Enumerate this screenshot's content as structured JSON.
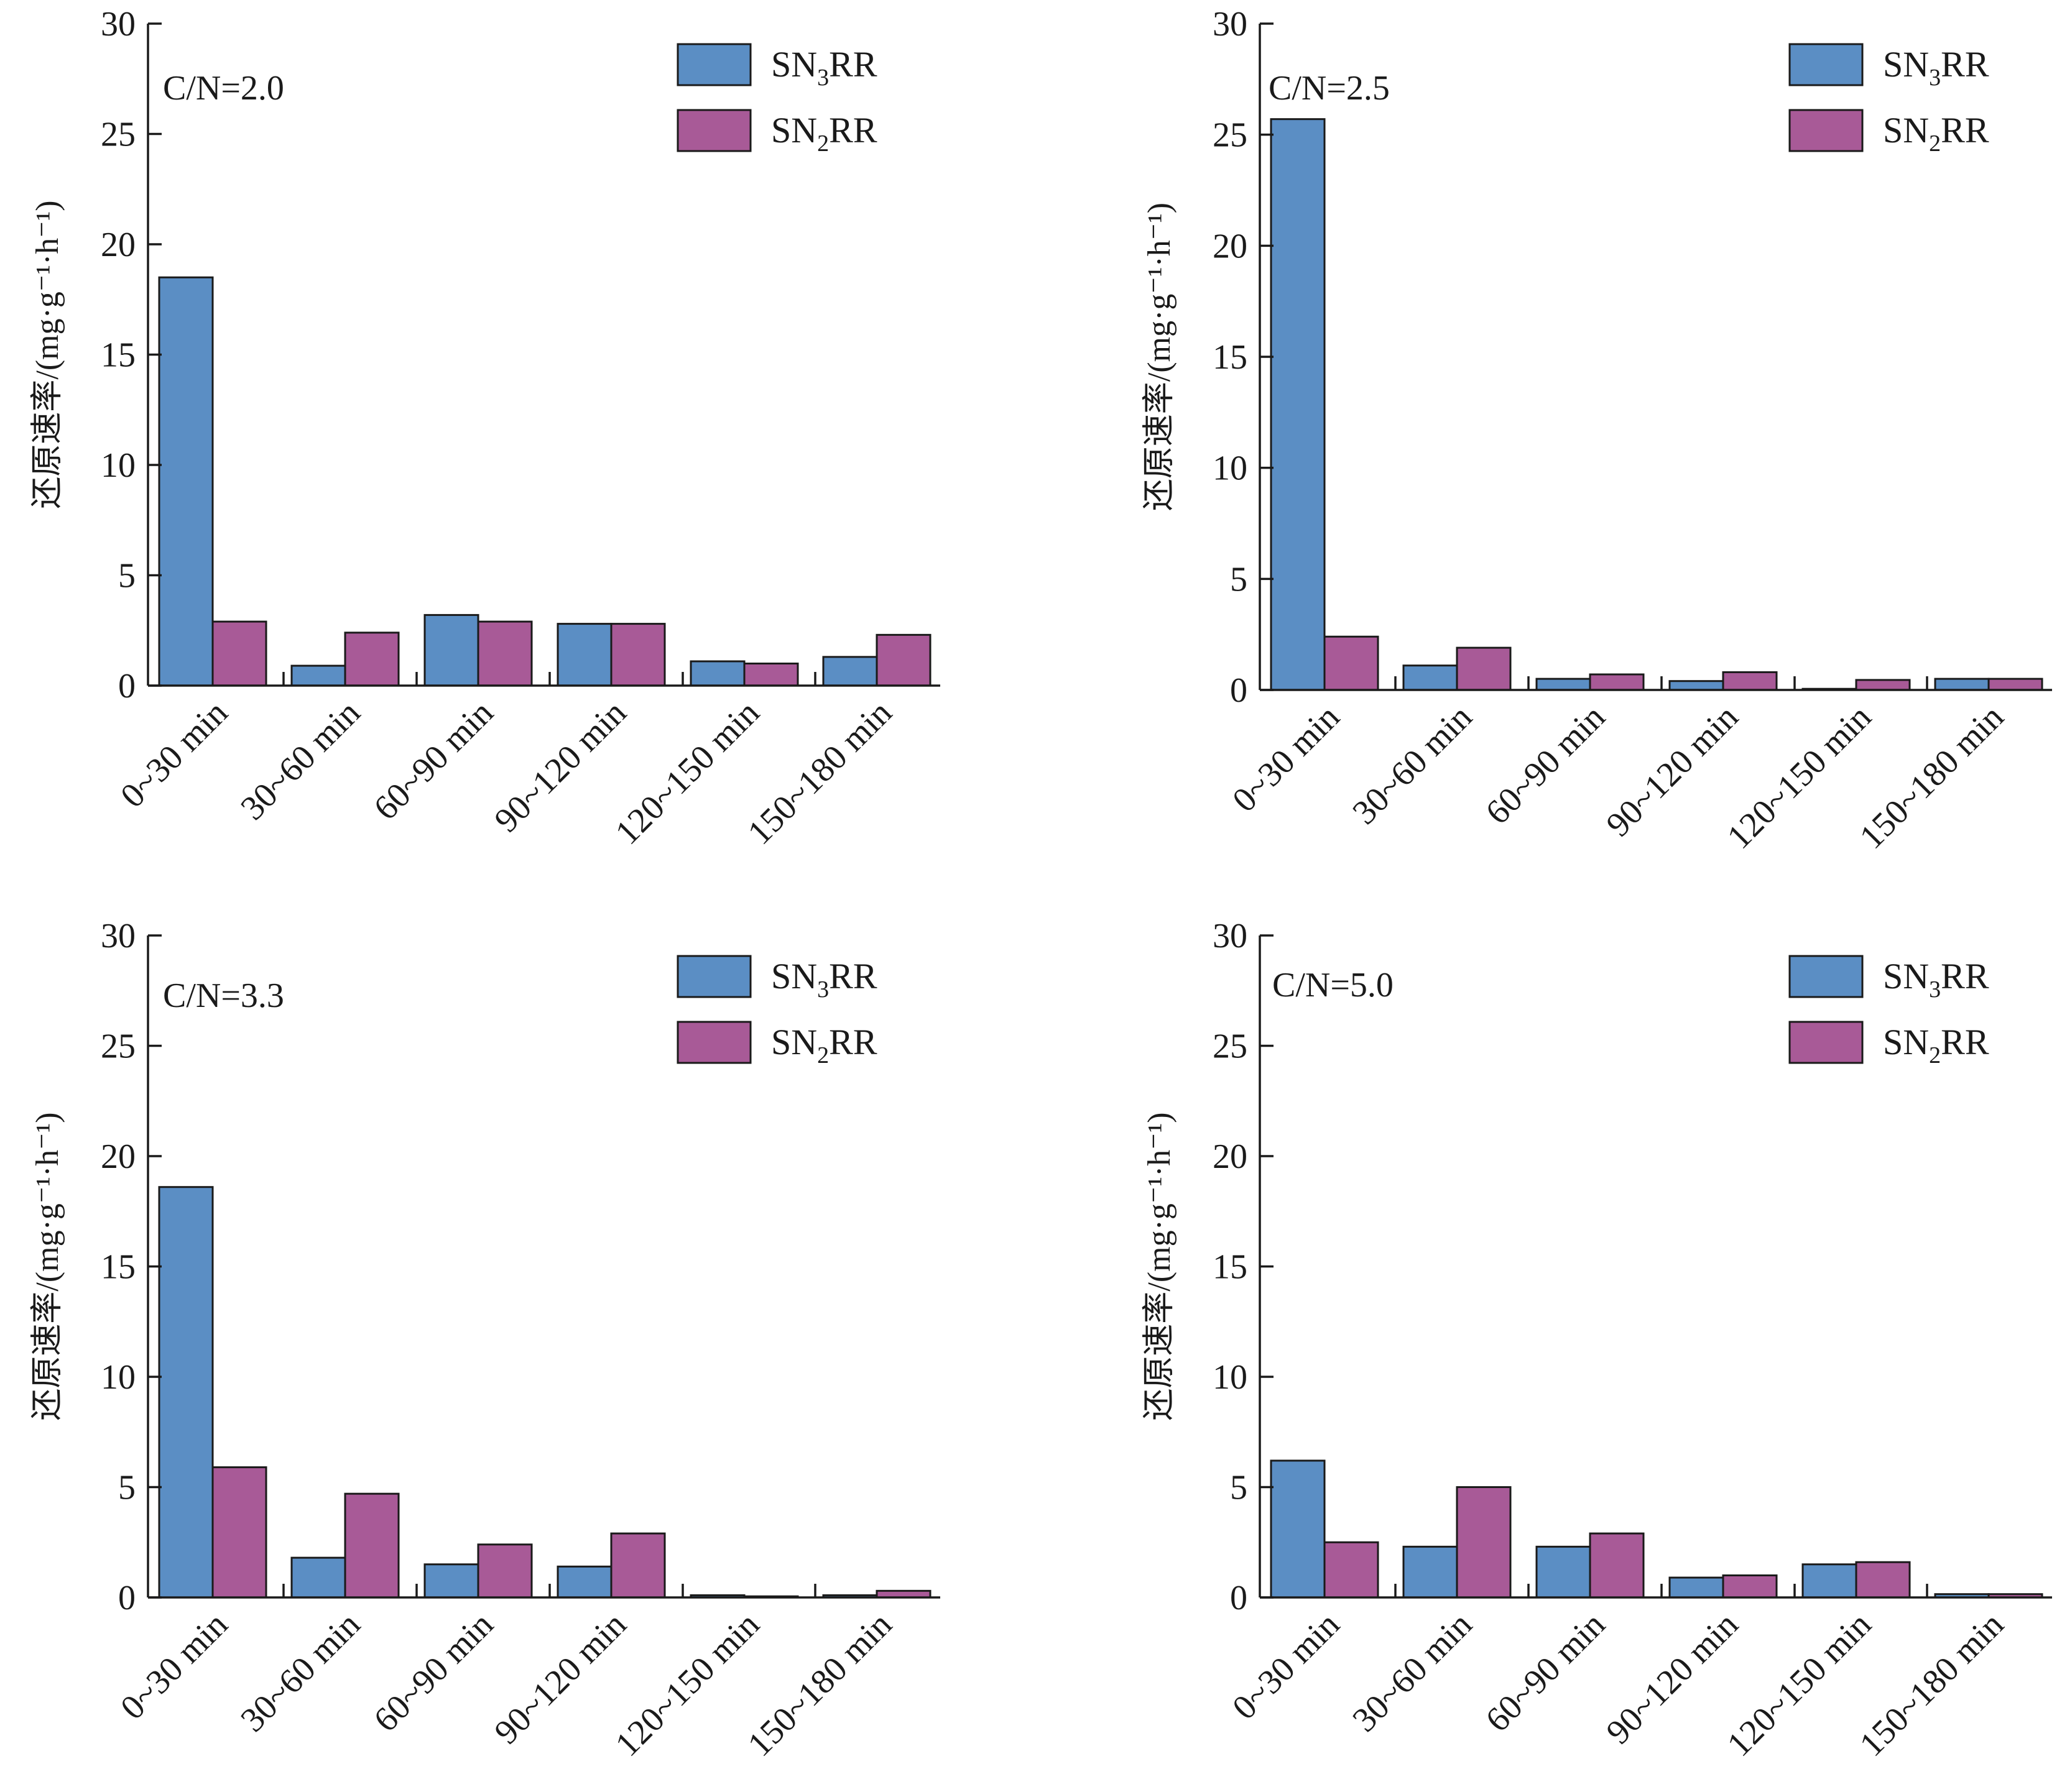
{
  "colors": {
    "SN3RR": "#5b8ec4",
    "SN2RR": "#a85a97",
    "axis": "#1a1a1a"
  },
  "chart_data": [
    {
      "type": "bar",
      "annotation": "C/N=2.0",
      "categories": [
        "0~30 min",
        "30~60 min",
        "60~90 min",
        "90~120 min",
        "120~150 min",
        "150~180 min"
      ],
      "ylabel": "还原速率/(mg·g⁻¹·h⁻¹)",
      "ylim": [
        0,
        30
      ],
      "yticks": [
        "0",
        "5",
        "10",
        "15",
        "20",
        "25",
        "30"
      ],
      "legend_position": "top-right",
      "series": [
        {
          "legend": {
            "prefix": "SN",
            "sub": "3",
            "suffix": "RR"
          },
          "values": [
            18.5,
            0.9,
            3.2,
            2.8,
            1.1,
            1.3
          ]
        },
        {
          "legend": {
            "prefix": "SN",
            "sub": "2",
            "suffix": "RR"
          },
          "values": [
            2.9,
            2.4,
            2.9,
            2.8,
            1.0,
            2.3
          ]
        }
      ]
    },
    {
      "type": "bar",
      "annotation": "C/N=2.5",
      "categories": [
        "0~30 min",
        "30~60 min",
        "60~90 min",
        "90~120 min",
        "120~150 min",
        "150~180 min"
      ],
      "ylabel": "还原速率/(mg·g⁻¹·h⁻¹)",
      "ylim": [
        0,
        30
      ],
      "yticks": [
        "0",
        "5",
        "10",
        "15",
        "20",
        "25",
        "30"
      ],
      "legend_position": "top-right",
      "series": [
        {
          "legend": {
            "prefix": "SN",
            "sub": "3",
            "suffix": "RR"
          },
          "values": [
            25.7,
            1.1,
            0.5,
            0.4,
            0.05,
            0.5
          ]
        },
        {
          "legend": {
            "prefix": "SN",
            "sub": "2",
            "suffix": "RR"
          },
          "values": [
            2.4,
            1.9,
            0.7,
            0.8,
            0.45,
            0.5
          ]
        }
      ]
    },
    {
      "type": "bar",
      "annotation": "C/N=3.3",
      "categories": [
        "0~30 min",
        "30~60 min",
        "60~90 min",
        "90~120 min",
        "120~150 min",
        "150~180 min"
      ],
      "ylabel": "还原速率/(mg·g⁻¹·h⁻¹)",
      "ylim": [
        0,
        30
      ],
      "yticks": [
        "0",
        "5",
        "10",
        "15",
        "20",
        "25",
        "30"
      ],
      "legend_position": "top-right",
      "series": [
        {
          "legend": {
            "prefix": "SN",
            "sub": "3",
            "suffix": "RR"
          },
          "values": [
            18.6,
            1.8,
            1.5,
            1.4,
            0.1,
            0.1
          ]
        },
        {
          "legend": {
            "prefix": "SN",
            "sub": "2",
            "suffix": "RR"
          },
          "values": [
            5.9,
            4.7,
            2.4,
            2.9,
            0.05,
            0.3
          ]
        }
      ]
    },
    {
      "type": "bar",
      "annotation": "C/N=5.0",
      "categories": [
        "0~30 min",
        "30~60 min",
        "60~90 min",
        "90~120 min",
        "120~150 min",
        "150~180 min"
      ],
      "ylabel": "还原速率/(mg·g⁻¹·h⁻¹)",
      "ylim": [
        0,
        30
      ],
      "yticks": [
        "0",
        "5",
        "10",
        "15",
        "20",
        "25",
        "30"
      ],
      "legend_position": "top-right",
      "series": [
        {
          "legend": {
            "prefix": "SN",
            "sub": "3",
            "suffix": "RR"
          },
          "values": [
            6.2,
            2.3,
            2.3,
            0.9,
            1.5,
            0.15
          ]
        },
        {
          "legend": {
            "prefix": "SN",
            "sub": "2",
            "suffix": "RR"
          },
          "values": [
            2.5,
            5.0,
            2.9,
            1.0,
            1.6,
            0.15
          ]
        }
      ]
    }
  ]
}
